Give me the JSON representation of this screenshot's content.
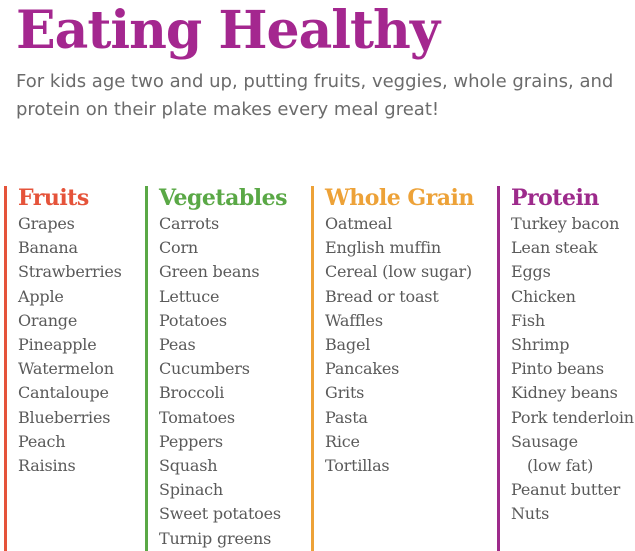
{
  "colors": {
    "title": "#a4278f",
    "fruits": "#e5533a",
    "vegetables": "#5aa846",
    "whole_grain": "#eda238",
    "protein": "#9d2a8b"
  },
  "title": "Eating Healthy",
  "intro": "For kids age two and up, putting fruits, veggies, whole grains, and protein on their plate makes every meal great!",
  "columns": [
    {
      "heading": "Fruits",
      "items": [
        "Grapes",
        "Banana",
        "Strawberries",
        "Apple",
        "Orange",
        "Pineapple",
        "Watermelon",
        "Cantaloupe",
        "Blueberries",
        "Peach",
        "Raisins"
      ]
    },
    {
      "heading": "Vegetables",
      "items": [
        "Carrots",
        "Corn",
        "Green beans",
        "Lettuce",
        "Potatoes",
        "Peas",
        "Cucumbers",
        "Broccoli",
        "Tomatoes",
        "Peppers",
        "Squash",
        "Spinach",
        "Sweet potatoes",
        "Turnip greens"
      ]
    },
    {
      "heading": "Whole Grain",
      "items": [
        "Oatmeal",
        "English muffin",
        "Cereal (low sugar)",
        "Bread or toast",
        "Waffles",
        "Bagel",
        "Pancakes",
        "Grits",
        "Pasta",
        "Rice",
        "Tortillas"
      ]
    },
    {
      "heading": "Protein",
      "items": [
        "Turkey bacon",
        "Lean steak",
        "Eggs",
        "Chicken",
        "Fish",
        "Shrimp",
        "Pinto beans",
        "Kidney beans",
        "Pork tenderloin",
        "Sausage",
        "(low fat)",
        "Peanut butter",
        "Nuts"
      ]
    }
  ]
}
